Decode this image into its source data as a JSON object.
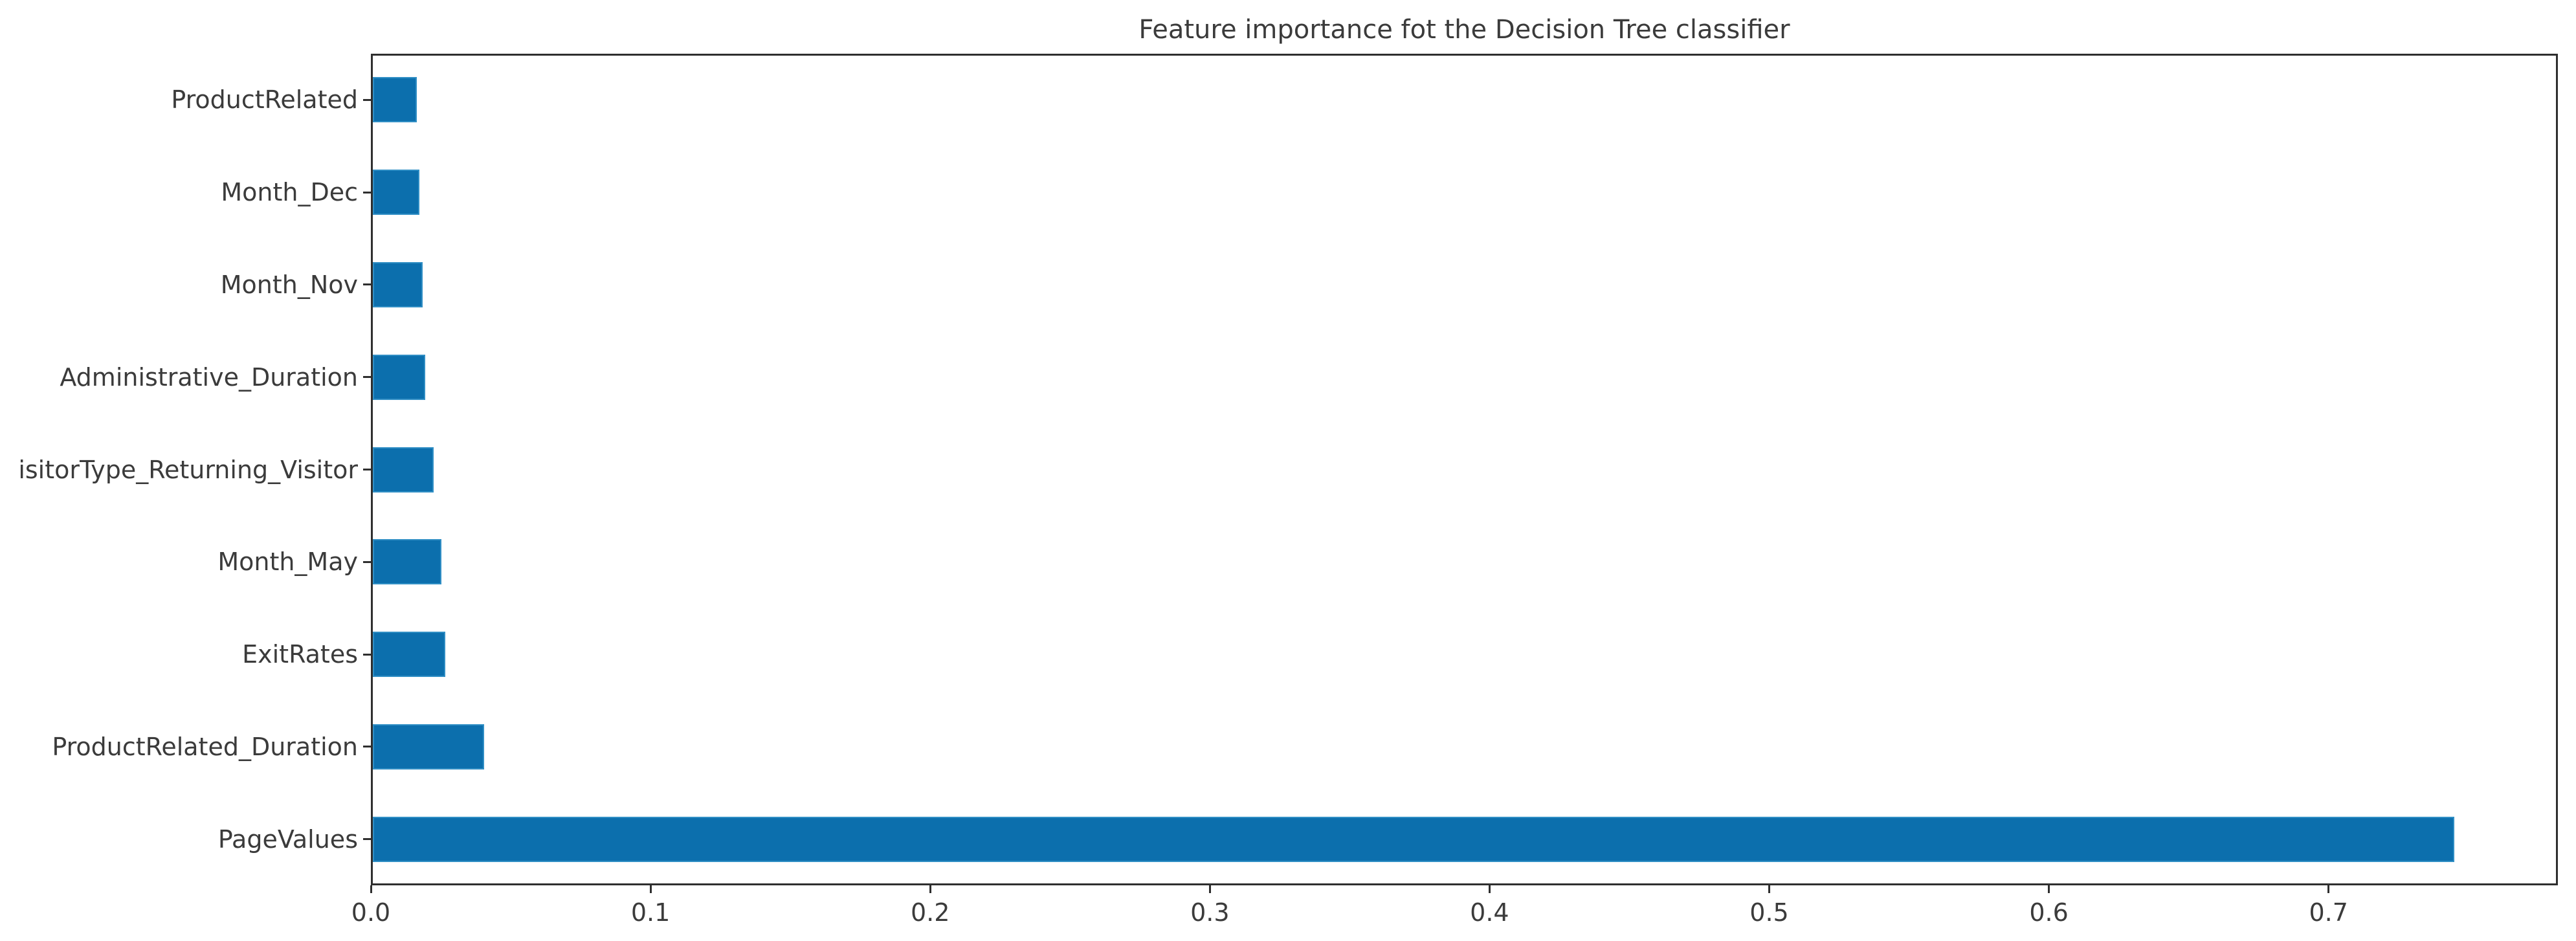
{
  "figure": {
    "background": "#ffffff",
    "text_color": "#3b3b3b",
    "spine_color": "#2f2f2f"
  },
  "chart_data": {
    "type": "bar",
    "orientation": "horizontal",
    "title": "Feature importance fot the Decision Tree classifier",
    "xlabel": "",
    "ylabel": "",
    "grid": false,
    "legend": false,
    "bar_color": "#0c6fad",
    "categories_top_to_bottom": [
      "ProductRelated",
      "Month_Dec",
      "Month_Nov",
      "Administrative_Duration",
      "isitorType_Returning_Visitor",
      "Month_May",
      "ExitRates",
      "ProductRelated_Duration",
      "PageValues"
    ],
    "values_top_to_bottom": [
      0.0164,
      0.0173,
      0.0185,
      0.0195,
      0.0225,
      0.0252,
      0.0266,
      0.0405,
      0.745
    ],
    "x_ticks": [
      0.0,
      0.1,
      0.2,
      0.3,
      0.4,
      0.5,
      0.6,
      0.7
    ],
    "x_tick_labels": [
      "0.0",
      "0.1",
      "0.2",
      "0.3",
      "0.4",
      "0.5",
      "0.6",
      "0.7"
    ],
    "xlim": [
      0,
      0.782
    ]
  }
}
